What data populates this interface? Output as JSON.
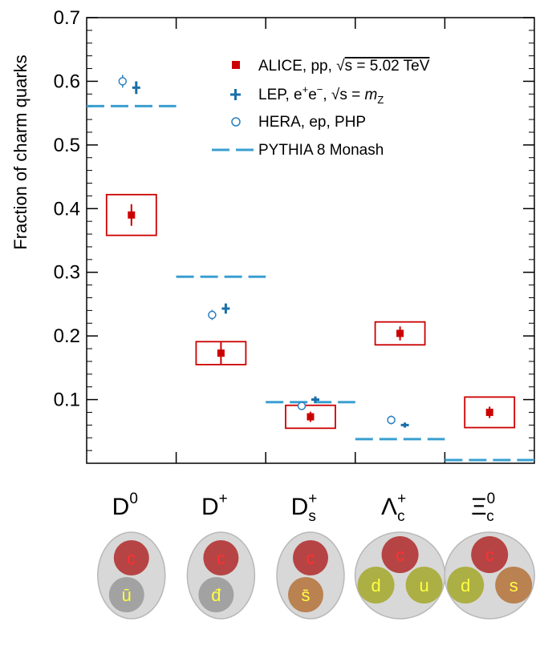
{
  "chart_data": {
    "type": "scatter",
    "ylabel": "Fraction of charm quarks",
    "ylim": [
      0,
      0.7
    ],
    "yticks": [
      0.1,
      0.2,
      0.3,
      0.4,
      0.5,
      0.6,
      0.7
    ],
    "ytick_labels": [
      "0.1",
      "0.2",
      "0.3",
      "0.4",
      "0.5",
      "0.6",
      "0.7"
    ],
    "categories": [
      {
        "base": "D",
        "sup": "0",
        "sub": ""
      },
      {
        "base": "D",
        "sup": "+",
        "sub": ""
      },
      {
        "base": "D",
        "sup": "+",
        "sub": "s"
      },
      {
        "base": "Λ",
        "sup": "+",
        "sub": "c"
      },
      {
        "base": "Ξ",
        "sup": "0",
        "sub": "c"
      }
    ],
    "series": [
      {
        "name": "ALICE, pp, √s = 5.02 TeV",
        "color": "#cc0000",
        "values": [
          0.39,
          0.173,
          0.073,
          0.204,
          0.08
        ],
        "stat_err": [
          0.017,
          0.017,
          0.008,
          0.011,
          0.009
        ],
        "syst_err": [
          0.032,
          0.018,
          0.018,
          0.018,
          0.024
        ]
      },
      {
        "name": "LEP, e⁺e⁻, √s = mZ",
        "color": "#1a6fa8",
        "values": [
          0.59,
          0.243,
          0.1,
          0.06,
          null
        ],
        "stat_err": [
          0.01,
          0.008,
          0.005,
          0.004,
          null
        ]
      },
      {
        "name": "HERA, ep, PHP",
        "color": "#2a7fc0",
        "values": [
          0.6,
          0.233,
          0.09,
          0.068,
          null
        ],
        "stat_err": [
          0.01,
          0.008,
          0.004,
          0.007,
          null
        ]
      },
      {
        "name": "PYTHIA 8 Monash",
        "color": "#3a9fd0",
        "values": [
          0.561,
          0.293,
          0.096,
          0.038,
          0.005
        ]
      }
    ],
    "legend": {
      "position": "top-right",
      "entries": [
        {
          "main": "ALICE, pp, ",
          "rest": "s = 5.02 TeV"
        },
        {
          "main": "LEP, e",
          "sup1": "+",
          "mid": "e",
          "sup2": "−",
          "rest": ", ",
          "sqrt": "s = ",
          "italic": "m",
          "sub": "Z"
        },
        {
          "main": "HERA, ep, PHP"
        },
        {
          "main": "PYTHIA 8 Monash"
        }
      ]
    },
    "quark_diagrams": [
      {
        "quarks": [
          "c",
          "ū"
        ]
      },
      {
        "quarks": [
          "c",
          "đ"
        ]
      },
      {
        "quarks": [
          "c",
          "s̄"
        ]
      },
      {
        "quarks": [
          "c",
          "d",
          "u"
        ]
      },
      {
        "quarks": [
          "c",
          "d",
          "s"
        ]
      }
    ]
  }
}
